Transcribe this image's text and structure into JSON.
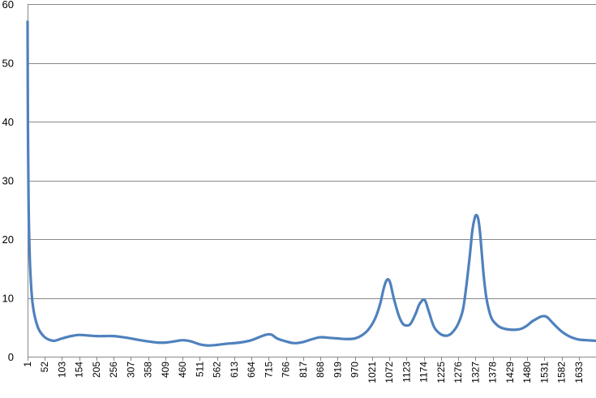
{
  "colors": {
    "series": "#4f81bd",
    "grid": "#888888"
  },
  "chart_data": {
    "type": "line",
    "title": "",
    "xlabel": "",
    "ylabel": "",
    "ylim": [
      0,
      60
    ],
    "xlim": [
      1,
      1684
    ],
    "yticks": [
      0,
      10,
      20,
      30,
      40,
      50,
      60
    ],
    "xticks": [
      1,
      52,
      103,
      154,
      205,
      256,
      307,
      358,
      409,
      460,
      511,
      562,
      613,
      664,
      715,
      766,
      817,
      868,
      919,
      970,
      1021,
      1072,
      1123,
      1174,
      1225,
      1276,
      1327,
      1378,
      1429,
      1480,
      1531,
      1582,
      1633
    ],
    "grid": true,
    "legend": "none",
    "series": [
      {
        "x": [
          1,
          2,
          4,
          6,
          8,
          11,
          15,
          20,
          26,
          33,
          41,
          52,
          64,
          80,
          103,
          130,
          154,
          180,
          205,
          230,
          256,
          285,
          307,
          335,
          358,
          385,
          409,
          435,
          460,
          485,
          511,
          535,
          562,
          590,
          613,
          640,
          664,
          690,
          705,
          715,
          725,
          740,
          766,
          790,
          817,
          845,
          868,
          895,
          919,
          945,
          970,
          990,
          1010,
          1030,
          1045,
          1055,
          1063,
          1070,
          1076,
          1085,
          1100,
          1112,
          1123,
          1135,
          1150,
          1160,
          1170,
          1175,
          1180,
          1190,
          1205,
          1225,
          1245,
          1260,
          1276,
          1290,
          1300,
          1310,
          1318,
          1325,
          1330,
          1335,
          1340,
          1346,
          1352,
          1360,
          1370,
          1378,
          1395,
          1410,
          1429,
          1450,
          1465,
          1480,
          1495,
          1510,
          1520,
          1531,
          1540,
          1550,
          1565,
          1582,
          1600,
          1615,
          1633,
          1655,
          1684
        ],
        "values": [
          57,
          40,
          26,
          20,
          16,
          12.5,
          9.5,
          7.5,
          6,
          4.8,
          4,
          3.3,
          2.9,
          2.7,
          3.1,
          3.5,
          3.7,
          3.6,
          3.5,
          3.5,
          3.5,
          3.3,
          3.1,
          2.8,
          2.6,
          2.4,
          2.4,
          2.6,
          2.8,
          2.6,
          2.1,
          1.9,
          2,
          2.2,
          2.3,
          2.5,
          2.8,
          3.4,
          3.7,
          3.8,
          3.7,
          3.1,
          2.6,
          2.3,
          2.5,
          3,
          3.3,
          3.2,
          3.1,
          3,
          3.1,
          3.6,
          4.6,
          6.5,
          9,
          11.5,
          12.9,
          13.1,
          12.3,
          10,
          7,
          5.6,
          5.3,
          5.6,
          7.3,
          8.8,
          9.6,
          9.7,
          9.3,
          7.5,
          5,
          3.8,
          3.6,
          4.2,
          5.6,
          8,
          12,
          17,
          21.5,
          23.6,
          24.1,
          23.5,
          21.5,
          17.5,
          13.5,
          9.8,
          7.3,
          6.2,
          5.2,
          4.8,
          4.6,
          4.6,
          4.8,
          5.3,
          6,
          6.5,
          6.8,
          6.9,
          6.7,
          6.1,
          5.2,
          4.3,
          3.6,
          3.2,
          2.9,
          2.8,
          2.7
        ]
      }
    ]
  }
}
